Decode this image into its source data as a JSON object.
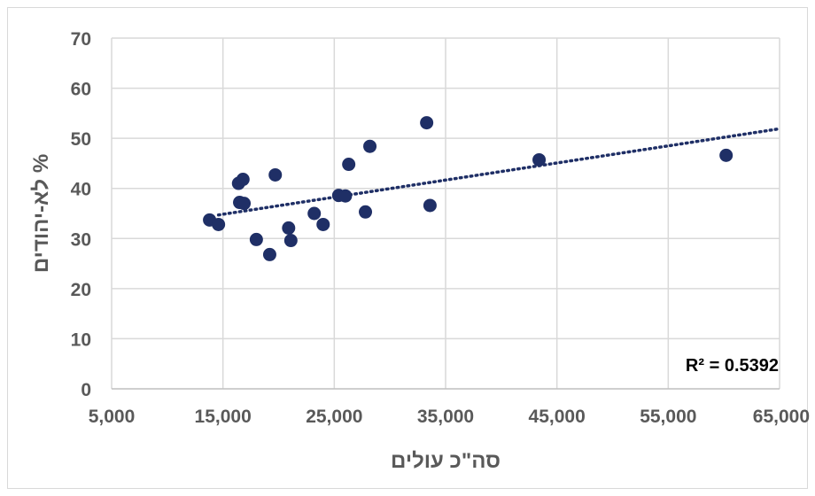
{
  "chart_data": {
    "type": "scatter",
    "xlabel": "סה\"כ עולים",
    "ylabel": "לא-יהודים %",
    "xlim": [
      5000,
      65000
    ],
    "ylim": [
      0,
      70
    ],
    "xticks": [
      5000,
      15000,
      25000,
      35000,
      45000,
      55000,
      65000
    ],
    "xtick_labels": [
      "5,000",
      "15,000",
      "25,000",
      "35,000",
      "45,000",
      "55,000",
      "65,000"
    ],
    "yticks": [
      0,
      10,
      20,
      30,
      40,
      50,
      60,
      70
    ],
    "ytick_labels": [
      "0",
      "10",
      "20",
      "30",
      "40",
      "50",
      "60",
      "70"
    ],
    "grid": true,
    "marker_color": "#1f2f66",
    "trendline": {
      "type": "linear",
      "style": "dotted",
      "color": "#1f2f66",
      "x_range": [
        14600,
        65000
      ],
      "r_squared": 0.5392,
      "label": "R² = 0.5392"
    },
    "points": [
      {
        "x": 13800,
        "y": 33.7
      },
      {
        "x": 14600,
        "y": 32.8
      },
      {
        "x": 16400,
        "y": 41.0
      },
      {
        "x": 16800,
        "y": 41.8
      },
      {
        "x": 16500,
        "y": 37.2
      },
      {
        "x": 16900,
        "y": 37.0
      },
      {
        "x": 18000,
        "y": 29.8
      },
      {
        "x": 19200,
        "y": 26.8
      },
      {
        "x": 19700,
        "y": 42.7
      },
      {
        "x": 20900,
        "y": 32.1
      },
      {
        "x": 21100,
        "y": 29.6
      },
      {
        "x": 23200,
        "y": 35.0
      },
      {
        "x": 24000,
        "y": 32.8
      },
      {
        "x": 25400,
        "y": 38.6
      },
      {
        "x": 26000,
        "y": 38.5
      },
      {
        "x": 26300,
        "y": 44.8
      },
      {
        "x": 27800,
        "y": 35.3
      },
      {
        "x": 28200,
        "y": 48.4
      },
      {
        "x": 33300,
        "y": 53.1
      },
      {
        "x": 33600,
        "y": 36.6
      },
      {
        "x": 43400,
        "y": 45.7
      },
      {
        "x": 60200,
        "y": 46.6
      }
    ]
  }
}
